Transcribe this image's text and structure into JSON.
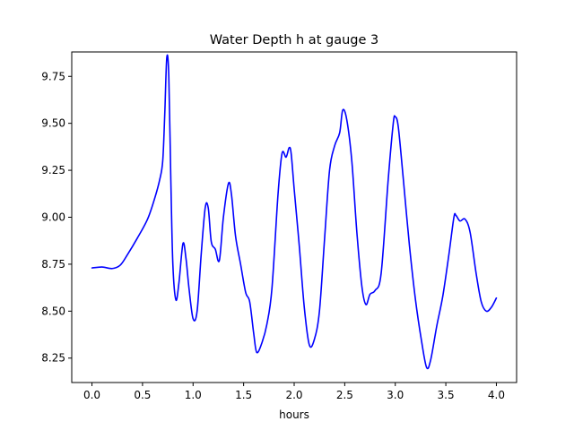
{
  "chart_data": {
    "type": "line",
    "title": "Water Depth h at gauge 3",
    "xlabel": "hours",
    "ylabel": "",
    "xlim": [
      -0.2,
      4.2
    ],
    "ylim": [
      8.12,
      9.88
    ],
    "xticks": [
      0.0,
      0.5,
      1.0,
      1.5,
      2.0,
      2.5,
      3.0,
      3.5,
      4.0
    ],
    "xtick_labels": [
      "0.0",
      "0.5",
      "1.0",
      "1.5",
      "2.0",
      "2.5",
      "3.0",
      "3.5",
      "4.0"
    ],
    "yticks": [
      8.25,
      8.5,
      8.75,
      9.0,
      9.25,
      9.5,
      9.75
    ],
    "ytick_labels": [
      "8.25",
      "8.50",
      "8.75",
      "9.00",
      "9.25",
      "9.50",
      "9.75"
    ],
    "grid": false,
    "series": [
      {
        "color": "#0000ff",
        "x": [
          0.0,
          0.1,
          0.2,
          0.28,
          0.35,
          0.45,
          0.55,
          0.62,
          0.67,
          0.7,
          0.72,
          0.74,
          0.76,
          0.78,
          0.8,
          0.83,
          0.86,
          0.9,
          0.93,
          0.96,
          1.0,
          1.04,
          1.08,
          1.12,
          1.15,
          1.18,
          1.22,
          1.26,
          1.3,
          1.35,
          1.38,
          1.42,
          1.47,
          1.52,
          1.56,
          1.6,
          1.63,
          1.68,
          1.73,
          1.78,
          1.84,
          1.88,
          1.92,
          1.95,
          1.97,
          2.0,
          2.05,
          2.1,
          2.15,
          2.2,
          2.25,
          2.3,
          2.35,
          2.4,
          2.45,
          2.48,
          2.52,
          2.57,
          2.62,
          2.67,
          2.71,
          2.75,
          2.8,
          2.86,
          2.93,
          2.98,
          3.0,
          3.03,
          3.08,
          3.14,
          3.2,
          3.26,
          3.31,
          3.35,
          3.41,
          3.47,
          3.53,
          3.58,
          3.6,
          3.64,
          3.69,
          3.74,
          3.8,
          3.85,
          3.9,
          3.95,
          4.0
        ],
        "y": [
          8.73,
          8.735,
          8.727,
          8.745,
          8.8,
          8.89,
          8.99,
          9.1,
          9.2,
          9.3,
          9.55,
          9.85,
          9.75,
          9.2,
          8.75,
          8.56,
          8.65,
          8.86,
          8.78,
          8.62,
          8.46,
          8.5,
          8.8,
          9.05,
          9.05,
          8.87,
          8.83,
          8.77,
          9.0,
          9.18,
          9.12,
          8.9,
          8.75,
          8.6,
          8.55,
          8.38,
          8.28,
          8.33,
          8.43,
          8.62,
          9.12,
          9.34,
          9.32,
          9.37,
          9.34,
          9.15,
          8.85,
          8.52,
          8.32,
          8.35,
          8.5,
          8.88,
          9.25,
          9.38,
          9.45,
          9.57,
          9.52,
          9.3,
          8.92,
          8.63,
          8.535,
          8.59,
          8.61,
          8.7,
          9.2,
          9.5,
          9.535,
          9.48,
          9.2,
          8.85,
          8.56,
          8.34,
          8.2,
          8.24,
          8.42,
          8.58,
          8.8,
          9.0,
          9.01,
          8.98,
          8.99,
          8.92,
          8.7,
          8.55,
          8.5,
          8.52,
          8.57
        ]
      }
    ]
  }
}
